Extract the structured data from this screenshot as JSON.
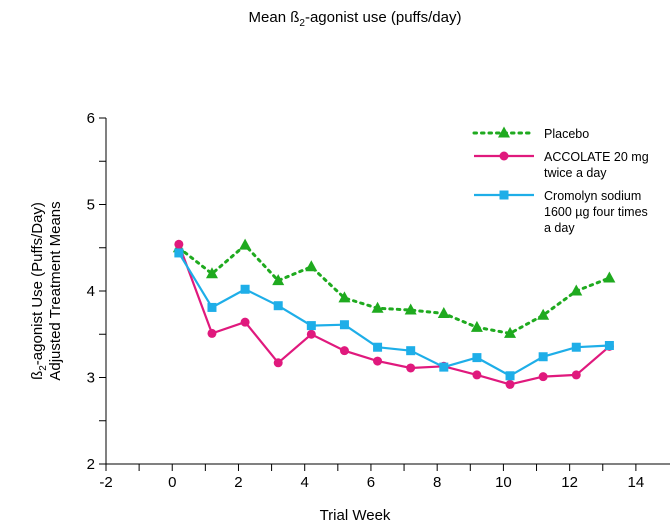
{
  "chart_data": {
    "type": "line",
    "title_main": "Mean ß",
    "title_sub": "2",
    "title_rest": "-agonist use (puffs/day)",
    "xlabel": "Trial Week",
    "ylabel_line1_main": "ß",
    "ylabel_line1_sub": "2",
    "ylabel_line1_rest": "-agonist Use (Puffs/Day)",
    "ylabel_line2": "Adjusted Treatment Means",
    "xlim": [
      -2,
      15
    ],
    "ylim": [
      2,
      6
    ],
    "x_ticks": [
      "-2",
      "0",
      "2",
      "4",
      "6",
      "8",
      "10",
      "12",
      "14"
    ],
    "y_ticks": [
      "2",
      "3",
      "4",
      "5",
      "6"
    ],
    "grid": false,
    "legend_position": "top-right",
    "series": [
      {
        "name": "Placebo",
        "legend_lines": [
          "Placebo"
        ],
        "color": "#1faa1f",
        "marker": "triangle",
        "style": "dotted",
        "x": [
          0.2,
          1.2,
          2.2,
          3.2,
          4.2,
          5.2,
          6.2,
          7.2,
          8.2,
          9.2,
          10.2,
          11.2,
          12.2,
          13.2
        ],
        "values": [
          4.5,
          4.2,
          4.53,
          4.12,
          4.28,
          3.92,
          3.8,
          3.78,
          3.74,
          3.58,
          3.51,
          3.72,
          4.0,
          4.15
        ]
      },
      {
        "name": "ACCOLATE 20 mg twice a day",
        "legend_lines": [
          "ACCOLATE 20 mg",
          "twice a day"
        ],
        "color": "#e0197d",
        "marker": "circle",
        "style": "solid",
        "x": [
          0.2,
          1.2,
          2.2,
          3.2,
          4.2,
          5.2,
          6.2,
          7.2,
          8.2,
          9.2,
          10.2,
          11.2,
          12.2,
          13.2
        ],
        "values": [
          4.54,
          3.51,
          3.64,
          3.17,
          3.5,
          3.31,
          3.19,
          3.11,
          3.13,
          3.03,
          2.92,
          3.01,
          3.03,
          3.36
        ]
      },
      {
        "name": "Cromolyn sodium 1600 µg four times a day",
        "legend_lines": [
          "Cromolyn sodium",
          "1600 µg four times",
          "a day"
        ],
        "color": "#1eaee8",
        "marker": "square",
        "style": "solid",
        "x": [
          0.2,
          1.2,
          2.2,
          3.2,
          4.2,
          5.2,
          6.2,
          7.2,
          8.2,
          9.2,
          10.2,
          11.2,
          12.2,
          13.2
        ],
        "values": [
          4.44,
          3.81,
          4.02,
          3.83,
          3.6,
          3.61,
          3.35,
          3.31,
          3.12,
          3.23,
          3.02,
          3.24,
          3.35,
          3.37
        ]
      }
    ]
  }
}
